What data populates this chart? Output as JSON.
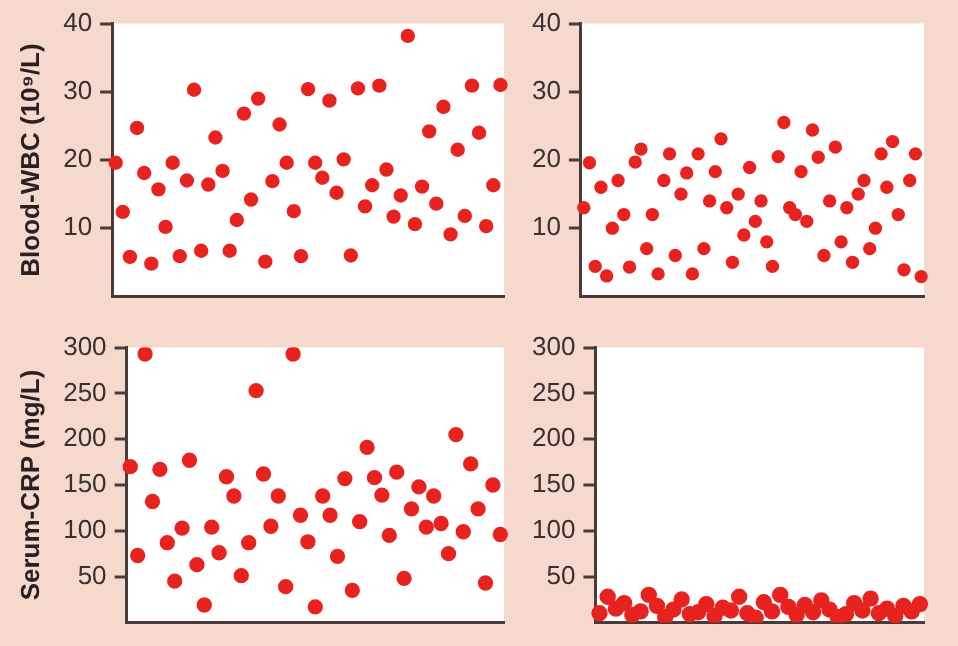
{
  "chart_data": [
    {
      "type": "scatter",
      "ylabel": "Blood-WBC (10⁹/L)",
      "tick_labels": "y",
      "marker": "circle",
      "grid": false,
      "legend": false,
      "ylim": [
        0,
        40
      ],
      "yticks": [
        10,
        20,
        30,
        40
      ],
      "categories": [
        null,
        null,
        null,
        null,
        null,
        null,
        null,
        null,
        null,
        null,
        null,
        null,
        null,
        null,
        null,
        null,
        null,
        null,
        null,
        null,
        null,
        null,
        null,
        null,
        null,
        null,
        null,
        null,
        null,
        null,
        null,
        null,
        null,
        null,
        null,
        null,
        null,
        null,
        null,
        null,
        null,
        null,
        null,
        null,
        null,
        null,
        null,
        null,
        null,
        null,
        null,
        null,
        null,
        null,
        null
      ],
      "series": [
        {
          "color": "#e8231f",
          "values": [
            19.6,
            12.4,
            5.8,
            24.7,
            18.1,
            4.8,
            15.7,
            10.2,
            19.6,
            5.9,
            17.0,
            30.3,
            6.7,
            16.4,
            23.3,
            18.4,
            6.7,
            11.2,
            26.8,
            14.2,
            29.0,
            5.1,
            16.9,
            25.2,
            19.6,
            12.5,
            5.9,
            30.4,
            19.6,
            17.4,
            28.7,
            15.2,
            20.1,
            6.0,
            30.5,
            13.2,
            16.3,
            30.9,
            18.6,
            11.7,
            14.8,
            38.2,
            10.6,
            16.1,
            24.2,
            13.6,
            27.8,
            9.1,
            21.5,
            11.8,
            30.9,
            24.0,
            10.3,
            16.3,
            31.0
          ]
        }
      ]
    },
    {
      "type": "scatter",
      "tick_labels": "y",
      "marker": "circle",
      "grid": false,
      "legend": false,
      "ylim": [
        0,
        40
      ],
      "yticks": [
        10,
        20,
        30,
        40
      ],
      "categories": [
        null,
        null,
        null,
        null,
        null,
        null,
        null,
        null,
        null,
        null,
        null,
        null,
        null,
        null,
        null,
        null,
        null,
        null,
        null,
        null,
        null,
        null,
        null,
        null,
        null,
        null,
        null,
        null,
        null,
        null,
        null,
        null,
        null,
        null,
        null,
        null,
        null,
        null,
        null,
        null,
        null,
        null,
        null,
        null,
        null,
        null,
        null,
        null,
        null,
        null,
        null,
        null,
        null,
        null,
        null,
        null,
        null,
        null,
        null,
        null
      ],
      "series": [
        {
          "color": "#e8231f",
          "values": [
            13,
            19.6,
            4.4,
            16,
            3.0,
            10,
            17,
            12,
            4.3,
            19.7,
            21.6,
            7,
            12,
            3.3,
            17,
            20.9,
            6,
            15,
            18.1,
            3.3,
            20.9,
            7,
            14,
            18.3,
            23.1,
            13,
            5,
            15,
            9,
            18.9,
            11,
            14,
            8,
            4.4,
            20.5,
            25.5,
            13,
            12,
            18.3,
            11,
            24.4,
            20.4,
            6,
            14,
            21.9,
            8,
            13,
            5,
            15,
            17,
            7,
            10,
            20.9,
            16,
            22.7,
            12,
            3.9,
            17,
            20.9,
            2.9
          ]
        }
      ]
    },
    {
      "type": "scatter",
      "ylabel": "Serum-CRP (mg/L)",
      "tick_labels": "y",
      "marker": "circle",
      "grid": false,
      "legend": false,
      "ylim": [
        0,
        300
      ],
      "yticks": [
        50,
        100,
        150,
        200,
        250,
        300
      ],
      "categories": [
        null,
        null,
        null,
        null,
        null,
        null,
        null,
        null,
        null,
        null,
        null,
        null,
        null,
        null,
        null,
        null,
        null,
        null,
        null,
        null,
        null,
        null,
        null,
        null,
        null,
        null,
        null,
        null,
        null,
        null,
        null,
        null,
        null,
        null,
        null,
        null,
        null,
        null,
        null,
        null,
        null,
        null,
        null,
        null,
        null,
        null,
        null,
        null,
        null,
        null,
        null
      ],
      "series": [
        {
          "color": "#e8231f",
          "values": [
            170,
            73,
            293,
            132,
            167,
            87,
            45,
            103,
            177,
            63,
            19,
            104,
            76,
            159,
            138,
            51,
            87,
            253,
            162,
            105,
            138,
            39,
            293,
            117,
            88,
            17,
            138,
            117,
            72,
            157,
            35,
            110,
            191,
            158,
            139,
            95,
            164,
            48,
            124,
            148,
            104,
            138,
            108,
            75,
            205,
            99,
            173,
            124,
            43,
            150,
            96
          ]
        }
      ]
    },
    {
      "type": "scatter",
      "tick_labels": "y",
      "marker": "circle",
      "grid": false,
      "legend": false,
      "ylim": [
        0,
        300
      ],
      "yticks": [
        50,
        100,
        150,
        200,
        250,
        300
      ],
      "categories": [
        null,
        null,
        null,
        null,
        null,
        null,
        null,
        null,
        null,
        null,
        null,
        null,
        null,
        null,
        null,
        null,
        null,
        null,
        null,
        null,
        null,
        null,
        null,
        null,
        null,
        null,
        null,
        null,
        null,
        null,
        null,
        null,
        null,
        null,
        null,
        null,
        null,
        null,
        null,
        null
      ],
      "series": [
        {
          "color": "#e8231f",
          "values": [
            10,
            28,
            15,
            21,
            8,
            12,
            30,
            18,
            6,
            14,
            25,
            9,
            11,
            20,
            7,
            16,
            13,
            28,
            10,
            5,
            22,
            12,
            30,
            17,
            8,
            19,
            11,
            24,
            14,
            6,
            9,
            21,
            13,
            26,
            10,
            15,
            7,
            18,
            12,
            20
          ]
        }
      ]
    }
  ]
}
